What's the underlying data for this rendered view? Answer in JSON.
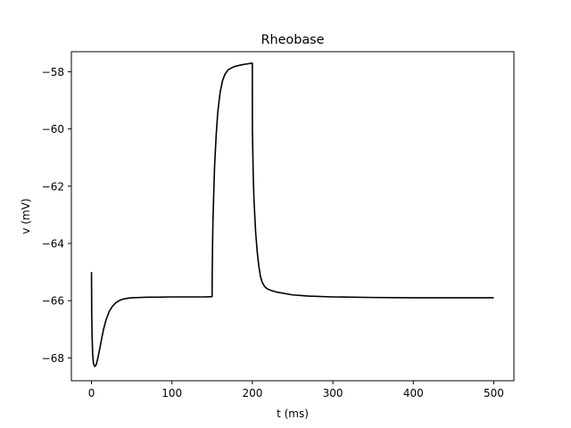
{
  "chart_data": {
    "type": "line",
    "title": "Rheobase",
    "xlabel": "t (ms)",
    "ylabel": "v (mV)",
    "xlim": [
      -25,
      525
    ],
    "ylim": [
      -68.8,
      -57.3
    ],
    "xticks": [
      0,
      100,
      200,
      300,
      400,
      500
    ],
    "yticks": [
      -68,
      -66,
      -64,
      -62,
      -60,
      -58
    ],
    "xtick_labels": [
      "0",
      "100",
      "200",
      "300",
      "400",
      "500"
    ],
    "ytick_labels": [
      "−68",
      "−66",
      "−64",
      "−62",
      "−60",
      "−58"
    ],
    "grid": false,
    "series": [
      {
        "color": "#000000",
        "x": [
          0,
          0.3,
          0.8,
          1.5,
          2.5,
          4,
          5,
          6,
          7,
          8,
          10,
          12,
          15,
          18,
          22,
          26,
          30,
          35,
          40,
          45,
          50,
          60,
          70,
          80,
          100,
          120,
          140,
          149.9,
          150,
          150.5,
          151,
          152,
          153,
          155,
          157,
          160,
          163,
          166,
          170,
          175,
          180,
          185,
          190,
          195,
          199.9,
          200,
          200.5,
          201,
          202,
          204,
          206,
          208,
          210,
          212,
          215,
          218,
          221,
          225,
          230,
          240,
          250,
          270,
          300,
          350,
          400,
          450,
          500
        ],
        "y": [
          -65.0,
          -66.5,
          -67.3,
          -67.9,
          -68.2,
          -68.3,
          -68.28,
          -68.22,
          -68.12,
          -68.0,
          -67.72,
          -67.42,
          -67.0,
          -66.68,
          -66.38,
          -66.2,
          -66.08,
          -65.99,
          -65.94,
          -65.92,
          -65.9,
          -65.89,
          -65.88,
          -65.88,
          -65.87,
          -65.87,
          -65.87,
          -65.86,
          -65.2,
          -64.0,
          -63.2,
          -62.2,
          -61.3,
          -60.2,
          -59.4,
          -58.7,
          -58.3,
          -58.08,
          -57.93,
          -57.85,
          -57.8,
          -57.77,
          -57.74,
          -57.72,
          -57.7,
          -60.0,
          -60.8,
          -61.6,
          -62.5,
          -63.6,
          -64.3,
          -64.8,
          -65.15,
          -65.35,
          -65.5,
          -65.58,
          -65.62,
          -65.66,
          -65.7,
          -65.75,
          -65.8,
          -65.84,
          -65.87,
          -65.89,
          -65.9,
          -65.9,
          -65.9
        ]
      }
    ]
  }
}
